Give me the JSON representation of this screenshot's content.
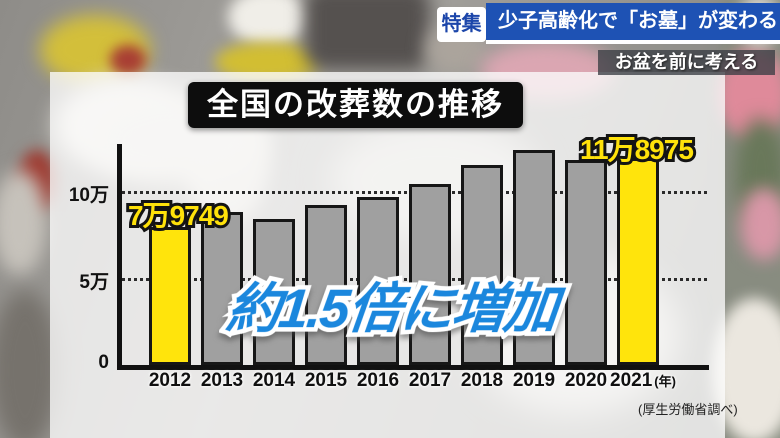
{
  "header": {
    "badge": "特集",
    "headline": "少子高齢化で「お墓」が変わる",
    "subheadline": "お盆を前に考える",
    "headline_bg_color": "#1e52b4"
  },
  "chart_data": {
    "type": "bar",
    "title": "全国の改葬数の推移",
    "categories": [
      "2012",
      "2013",
      "2014",
      "2015",
      "2016",
      "2017",
      "2018",
      "2019",
      "2020",
      "2021"
    ],
    "values": [
      79749,
      88000,
      84000,
      92000,
      97000,
      104000,
      115000,
      124000,
      118000,
      118975
    ],
    "highlighted_categories": [
      "2012",
      "2021"
    ],
    "value_labels": {
      "first": "7万9749",
      "last": "11万8975"
    },
    "annotation": "約1.5倍に増加",
    "annotation_color": "#1b87dd",
    "bar_color": "#a0a0a0",
    "highlight_color": "#ffe40c",
    "ylim": [
      0,
      125000
    ],
    "yticks": [
      {
        "value": 0,
        "label": "0"
      },
      {
        "value": 50000,
        "label": "5万"
      },
      {
        "value": 100000,
        "label": "10万"
      }
    ],
    "xlabel_unit": "(年)",
    "source": "(厚生労働省調べ)",
    "grid": "dotted-horizontal",
    "legend": "none"
  }
}
